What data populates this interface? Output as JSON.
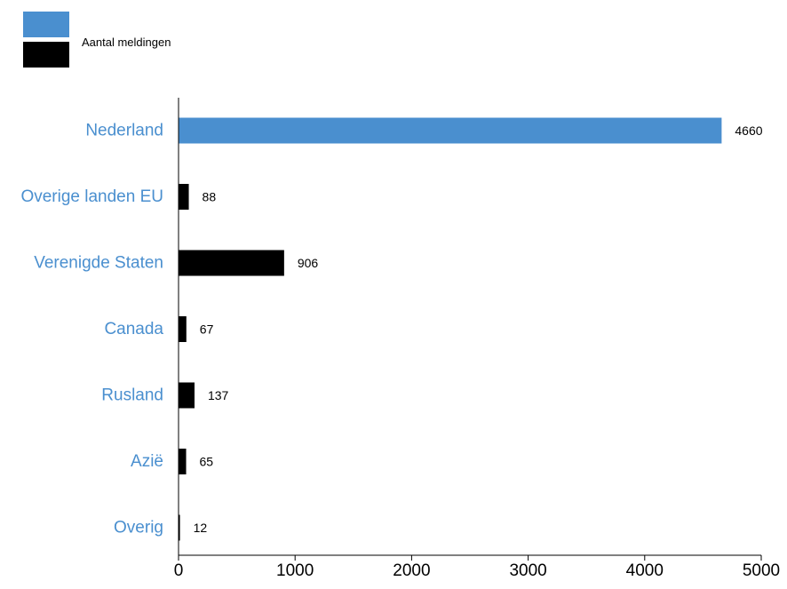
{
  "chart_data": {
    "type": "bar",
    "orientation": "horizontal",
    "categories": [
      "Nederland",
      "Overige landen EU",
      "Verenigde Staten",
      "Canada",
      "Rusland",
      "Azië",
      "Overig"
    ],
    "values": [
      4660,
      88,
      906,
      67,
      137,
      65,
      12
    ],
    "bar_colors": [
      "#4a8fcf",
      "#000000",
      "#000000",
      "#000000",
      "#000000",
      "#000000",
      "#000000"
    ],
    "category_label_color": "#4a8fcf",
    "xlim": [
      0,
      5000
    ],
    "xticks": [
      0,
      1000,
      2000,
      3000,
      4000,
      5000
    ],
    "grid": false,
    "legend": {
      "placement": "top-left",
      "entries": [
        {
          "color": "#4a8fcf",
          "label": ""
        },
        {
          "color": "#000000",
          "label": "Aantal meldingen"
        }
      ]
    },
    "title": "",
    "xlabel": "",
    "ylabel": ""
  }
}
